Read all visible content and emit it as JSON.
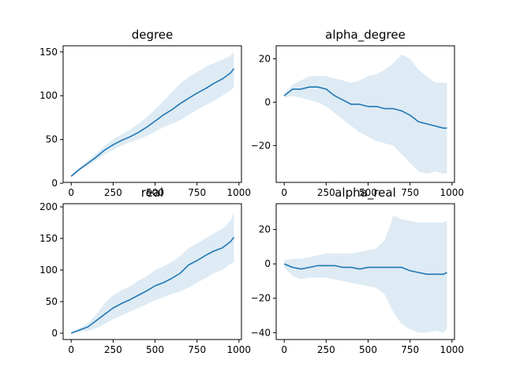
{
  "figure": {
    "background": "#ffffff",
    "line_color": "#1f77b4",
    "band_color": "#1f77b4"
  },
  "chart_data": [
    {
      "type": "line",
      "title": "degree",
      "xlim": [
        -48,
        1015
      ],
      "ylim": [
        1,
        157
      ],
      "xticks": [
        0,
        250,
        500,
        750,
        1000
      ],
      "yticks": [
        0,
        50,
        100,
        150
      ],
      "grid": false,
      "series": [
        {
          "x": [
            0,
            50,
            100,
            150,
            200,
            250,
            300,
            350,
            400,
            450,
            500,
            550,
            600,
            650,
            700,
            750,
            800,
            850,
            900,
            950,
            970
          ],
          "y": [
            8,
            16,
            23,
            30,
            38,
            44,
            49,
            53,
            58,
            64,
            71,
            78,
            84,
            91,
            97,
            103,
            108,
            114,
            119,
            126,
            131
          ],
          "lower": [
            7,
            14,
            20,
            26,
            33,
            38,
            43,
            47,
            50,
            54,
            59,
            64,
            68,
            72,
            78,
            84,
            89,
            94,
            100,
            106,
            110
          ],
          "upper": [
            9,
            18,
            26,
            34,
            43,
            50,
            56,
            61,
            68,
            75,
            84,
            94,
            104,
            114,
            121,
            127,
            133,
            137,
            141,
            146,
            150
          ]
        }
      ]
    },
    {
      "type": "line",
      "title": "alpha_degree",
      "xlim": [
        -48,
        1015
      ],
      "ylim": [
        -37,
        26
      ],
      "xticks": [
        0,
        250,
        500,
        750,
        1000
      ],
      "yticks": [
        -20,
        0,
        20
      ],
      "grid": false,
      "series": [
        {
          "x": [
            0,
            50,
            100,
            150,
            200,
            250,
            300,
            350,
            400,
            450,
            500,
            550,
            600,
            650,
            700,
            750,
            800,
            850,
            900,
            950,
            970
          ],
          "y": [
            3,
            6,
            6,
            7,
            7,
            6,
            3,
            1,
            -1,
            -1,
            -2,
            -2,
            -3,
            -3,
            -4,
            -6,
            -9,
            -10,
            -11,
            -12,
            -12
          ],
          "lower": [
            2,
            3,
            2,
            1,
            0,
            -2,
            -5,
            -8,
            -11,
            -14,
            -16,
            -18,
            -19,
            -20,
            -24,
            -28,
            -32,
            -33,
            -32,
            -33,
            -33
          ],
          "upper": [
            4,
            8,
            10,
            12,
            12,
            12,
            11,
            10,
            9,
            10,
            12,
            13,
            15,
            18,
            22,
            20,
            15,
            12,
            9,
            9,
            9
          ]
        }
      ]
    },
    {
      "type": "line",
      "title": "real",
      "xlim": [
        -48,
        1015
      ],
      "ylim": [
        -10,
        205
      ],
      "xticks": [
        0,
        250,
        500,
        750,
        1000
      ],
      "yticks": [
        0,
        50,
        100,
        150,
        200
      ],
      "grid": false,
      "series": [
        {
          "x": [
            0,
            50,
            100,
            150,
            200,
            250,
            300,
            350,
            400,
            450,
            500,
            550,
            600,
            650,
            700,
            750,
            800,
            850,
            900,
            950,
            970
          ],
          "y": [
            0,
            5,
            10,
            20,
            30,
            40,
            47,
            53,
            60,
            67,
            75,
            80,
            87,
            95,
            108,
            115,
            123,
            130,
            135,
            145,
            152
          ],
          "lower": [
            0,
            2,
            4,
            8,
            15,
            22,
            28,
            34,
            40,
            46,
            52,
            57,
            62,
            66,
            72,
            80,
            87,
            95,
            100,
            110,
            112
          ],
          "upper": [
            2,
            8,
            16,
            30,
            48,
            60,
            68,
            74,
            83,
            90,
            100,
            106,
            113,
            122,
            135,
            142,
            150,
            158,
            165,
            178,
            192
          ]
        }
      ]
    },
    {
      "type": "line",
      "title": "alpha_real",
      "xlim": [
        -48,
        1015
      ],
      "ylim": [
        -44,
        35
      ],
      "xticks": [
        0,
        250,
        500,
        750,
        1000
      ],
      "yticks": [
        -40,
        -20,
        0,
        20
      ],
      "grid": false,
      "series": [
        {
          "x": [
            0,
            50,
            100,
            150,
            200,
            250,
            300,
            350,
            400,
            450,
            500,
            550,
            600,
            650,
            700,
            750,
            800,
            850,
            900,
            950,
            970
          ],
          "y": [
            0,
            -2,
            -3,
            -2,
            -1,
            -1,
            -1,
            -2,
            -2,
            -3,
            -2,
            -2,
            -2,
            -2,
            -2,
            -4,
            -5,
            -6,
            -6,
            -6,
            -5
          ],
          "lower": [
            -2,
            -7,
            -9,
            -8,
            -8,
            -8,
            -9,
            -10,
            -11,
            -12,
            -13,
            -14,
            -18,
            -28,
            -35,
            -38,
            -40,
            -40,
            -39,
            -40,
            -38
          ],
          "upper": [
            2,
            3,
            3,
            4,
            5,
            6,
            6,
            6,
            6,
            7,
            8,
            9,
            14,
            28,
            26,
            25,
            24,
            24,
            24,
            24,
            25
          ]
        }
      ]
    }
  ]
}
